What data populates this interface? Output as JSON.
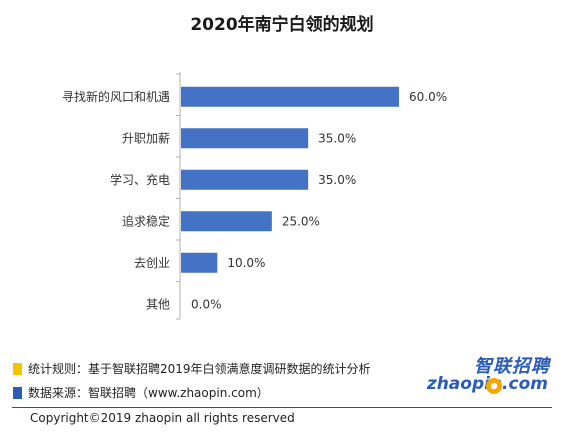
{
  "chart_data": {
    "type": "bar",
    "orientation": "horizontal",
    "title": "2020年南宁白领的规划",
    "categories": [
      "寻找新的风口和机遇",
      "升职加薪",
      "学习、充电",
      "追求稳定",
      "去创业",
      "其他"
    ],
    "values": [
      60.0,
      35.0,
      35.0,
      25.0,
      10.0,
      0.0
    ],
    "value_labels": [
      "60.0%",
      "35.0%",
      "35.0%",
      "25.0%",
      "10.0%",
      "0.0%"
    ],
    "xlim": [
      0,
      60
    ],
    "grid": false,
    "bar_color": "#4472c4"
  },
  "notes": {
    "rule": "统计规则：基于智联招聘2019年白领满意度调研数据的统计分析",
    "source": "数据来源：智联招聘（www.zhaopin.com）",
    "rule_color": "#f5c400",
    "source_color": "#2b5cb8"
  },
  "footer": {
    "copyright": "Copyright©2019 zhaopin all rights reserved"
  },
  "logo": {
    "cn": "智联招聘",
    "en": "zhaopin.com",
    "icon": "zhaopin-logo-icon",
    "accent": "#f5a800"
  }
}
